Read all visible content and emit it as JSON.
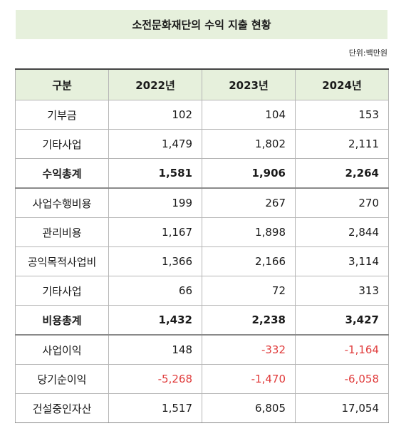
{
  "title": "소전문화재단의 수익 지출 현황",
  "unit": "단위:백만원",
  "headers": [
    "구분",
    "2022년",
    "2023년",
    "2024년"
  ],
  "rows": [
    {
      "label": "기부금",
      "v": [
        "102",
        "104",
        "153"
      ]
    },
    {
      "label": "기타사업",
      "v": [
        "1,479",
        "1,802",
        "2,111"
      ]
    },
    {
      "label": "수익총계",
      "v": [
        "1,581",
        "1,906",
        "2,264"
      ]
    },
    {
      "label": "사업수행비용",
      "v": [
        "199",
        "267",
        "270"
      ]
    },
    {
      "label": "관리비용",
      "v": [
        "1,167",
        "1,898",
        "2,844"
      ]
    },
    {
      "label": "공익목적사업비",
      "v": [
        "1,366",
        "2,166",
        "3,114"
      ]
    },
    {
      "label": "기타사업",
      "v": [
        "66",
        "72",
        "313"
      ]
    },
    {
      "label": "비용총계",
      "v": [
        "1,432",
        "2,238",
        "3,427"
      ]
    },
    {
      "label": "사업이익",
      "v": [
        "148",
        "-332",
        "-1,164"
      ]
    },
    {
      "label": "당기순이익",
      "v": [
        "-5,268",
        "-1,470",
        "-6,058"
      ]
    },
    {
      "label": "건설중인자산",
      "v": [
        "1,517",
        "6,805",
        "17,054"
      ]
    }
  ],
  "colors": {
    "header_bg": "#e6f0dc",
    "negative": "#e03b3b"
  }
}
